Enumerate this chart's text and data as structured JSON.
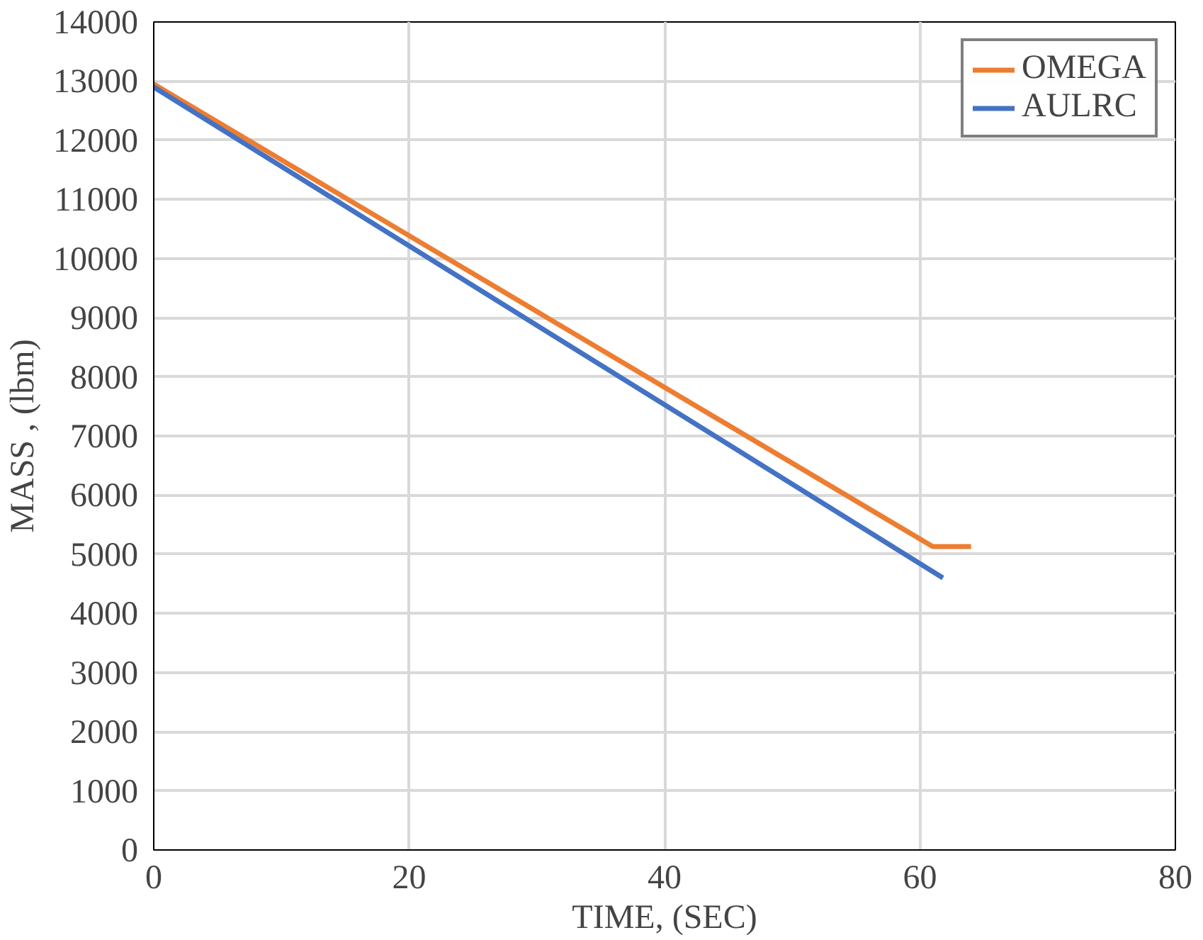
{
  "chart_data": {
    "type": "line",
    "xlabel": "TIME, (SEC)",
    "ylabel": "MASS , (lbm)",
    "xlim": [
      0,
      80
    ],
    "xticks": [
      0,
      20,
      40,
      60,
      80
    ],
    "ylim": [
      0,
      14000
    ],
    "yticks": [
      0,
      1000,
      2000,
      3000,
      4000,
      5000,
      6000,
      7000,
      8000,
      9000,
      10000,
      11000,
      12000,
      13000,
      14000
    ],
    "grid": true,
    "legend": "top right",
    "marker": "none",
    "line_style": "solid",
    "series": [
      {
        "name": "OMEGA",
        "color": "#ed7d31",
        "x": [
          0,
          61,
          64
        ],
        "values": [
          12950,
          5130,
          5130
        ]
      },
      {
        "name": "AULRC",
        "color": "#4472c4",
        "x": [
          0,
          61.8
        ],
        "values": [
          12900,
          4600
        ]
      }
    ]
  }
}
